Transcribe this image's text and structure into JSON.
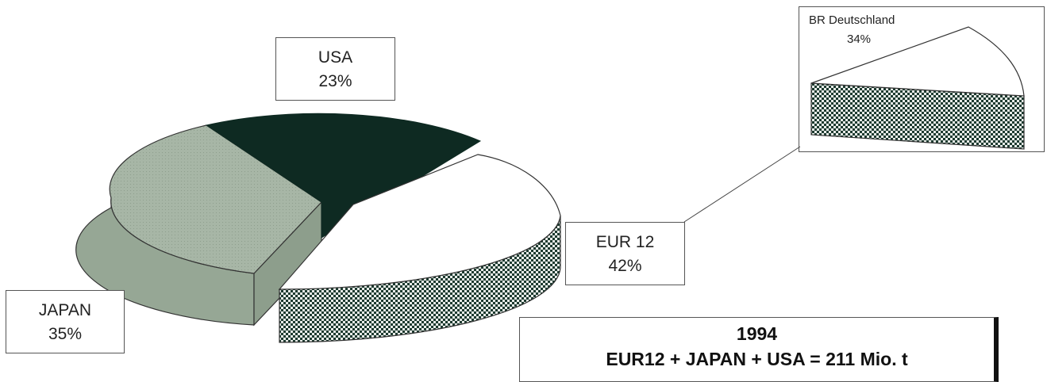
{
  "chart_data": {
    "type": "pie",
    "style": "3d-exploded",
    "slices": [
      {
        "label": "USA",
        "value": 23,
        "pct_label": "23%",
        "color": "#0e2a22"
      },
      {
        "label": "EUR 12",
        "value": 42,
        "pct_label": "42%",
        "color": "#ffffff",
        "side_pattern": "checkered-green"
      },
      {
        "label": "JAPAN",
        "value": 35,
        "pct_label": "35%",
        "color": "#a7b6a6"
      }
    ],
    "inset": {
      "parent": "EUR 12",
      "label": "BR Deutschland",
      "value": 34,
      "pct_label": "34%"
    },
    "caption": {
      "year": "1994",
      "formula": "EUR12 + JAPAN + USA = 211 Mio. t"
    }
  }
}
